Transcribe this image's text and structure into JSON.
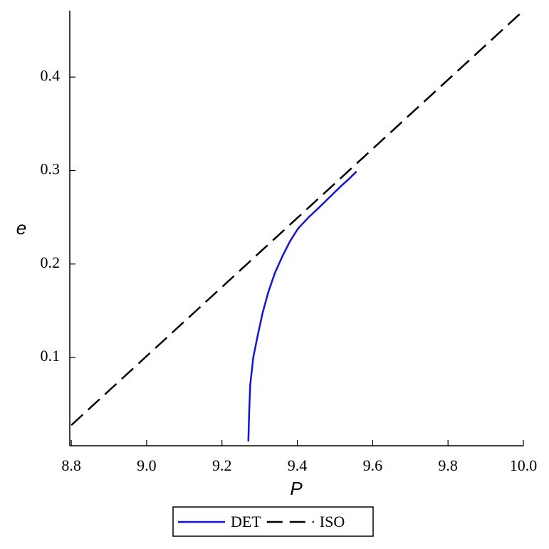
{
  "chart_data": {
    "type": "line",
    "x_label": "P",
    "y_label": "e",
    "xlim": [
      8.796,
      10.0
    ],
    "ylim": [
      0.0056,
      0.471
    ],
    "xticks": [
      8.8,
      {
        "value": 9,
        "label": "9.0"
      },
      9.2,
      9.4,
      9.6,
      9.8,
      {
        "value": 10,
        "label": "10.0"
      }
    ],
    "yticks": [
      0.1,
      0.2,
      0.3,
      0.4
    ],
    "legend": "bottom",
    "series": [
      {
        "name": "DET",
        "color": "#1414d8",
        "style": "solid",
        "x": [
          9.27,
          9.272,
          9.275,
          9.283,
          9.295,
          9.308,
          9.323,
          9.34,
          9.36,
          9.38,
          9.402,
          9.43,
          9.459,
          9.487,
          9.515,
          9.537,
          9.557
        ],
        "values": [
          0.0102,
          0.04,
          0.071,
          0.1,
          0.124,
          0.148,
          0.17,
          0.19,
          0.208,
          0.224,
          0.238,
          0.25,
          0.261,
          0.272,
          0.283,
          0.291,
          0.299
        ]
      },
      {
        "name": "ISO",
        "color": "#000000",
        "style": "dashed",
        "x": [
          8.8,
          10.0
        ],
        "values": [
          0.0276,
          0.471
        ]
      }
    ]
  }
}
